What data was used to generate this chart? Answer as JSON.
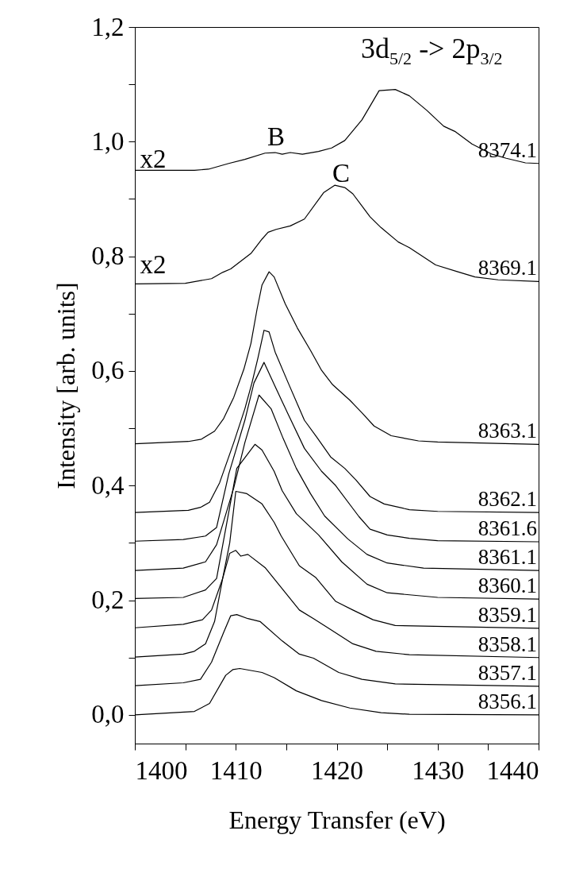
{
  "chart_data": {
    "type": "line",
    "xlabel": "Energy Transfer (eV)",
    "ylabel": "Intensity [arb. units]",
    "xlim": [
      1400,
      1440
    ],
    "ylim": [
      -0.05,
      1.2
    ],
    "xticks": [
      1400,
      {
        "value": 1405,
        "label": null
      },
      1410,
      {
        "value": 1415,
        "label": null
      },
      1420,
      {
        "value": 1425,
        "label": null
      },
      1430,
      {
        "value": 1435,
        "label": null
      },
      1440
    ],
    "yticks": [
      {
        "value": 0,
        "label": "0,0"
      },
      {
        "value": 0.1,
        "label": null
      },
      {
        "value": 0.2,
        "label": "0,2"
      },
      {
        "value": 0.3,
        "label": null
      },
      {
        "value": 0.4,
        "label": "0,4"
      },
      {
        "value": 0.5,
        "label": null
      },
      {
        "value": 0.6,
        "label": "0,6"
      },
      {
        "value": 0.7,
        "label": null
      },
      {
        "value": 0.8,
        "label": "0,8"
      },
      {
        "value": 0.9,
        "label": null
      },
      {
        "value": 1.0,
        "label": "1,0"
      },
      {
        "value": 1.1,
        "label": null
      },
      {
        "value": 1.2,
        "label": "1,2"
      }
    ],
    "annotations": [
      "3d$_{5/2}$ -> 2p$_{3/2}$",
      "x2",
      "x2",
      "B",
      "C"
    ],
    "series": [
      {
        "name": "8374.1",
        "color": "#000000",
        "x": [
          1400,
          1405.9,
          1407.3,
          1409.3,
          1410.9,
          1412.9,
          1413.9,
          1414.6,
          1415.4,
          1416.6,
          1418.2,
          1419.5,
          1420.8,
          1422.5,
          1423.3,
          1424.2,
          1425.8,
          1427.2,
          1428.9,
          1430.6,
          1431.7,
          1433.4,
          1435.4,
          1436.8,
          1438.7,
          1440
        ],
        "values": [
          0.95,
          0.95,
          0.952,
          0.962,
          0.969,
          0.98,
          0.981,
          0.978,
          0.981,
          0.978,
          0.983,
          0.989,
          1.002,
          1.038,
          1.062,
          1.089,
          1.091,
          1.08,
          1.055,
          1.027,
          1.018,
          0.996,
          0.978,
          0.971,
          0.963,
          0.962
        ]
      },
      {
        "name": "8369.1",
        "color": "#000000",
        "x": [
          1400,
          1405,
          1407.6,
          1408.7,
          1409.5,
          1411.5,
          1412.6,
          1413.2,
          1414.0,
          1415.4,
          1416.8,
          1418.7,
          1419.8,
          1420.8,
          1421.6,
          1423.3,
          1424.4,
          1426.1,
          1427.2,
          1429.8,
          1432,
          1433.7,
          1436,
          1440
        ],
        "values": [
          0.752,
          0.753,
          0.761,
          0.772,
          0.778,
          0.805,
          0.83,
          0.842,
          0.847,
          0.853,
          0.865,
          0.911,
          0.924,
          0.92,
          0.909,
          0.869,
          0.85,
          0.825,
          0.815,
          0.785,
          0.773,
          0.764,
          0.759,
          0.756
        ]
      },
      {
        "name": "8363.1",
        "color": "#000000",
        "x": [
          1400,
          1405.3,
          1406.6,
          1407.9,
          1408.8,
          1409.8,
          1410.8,
          1411.5,
          1412.1,
          1412.6,
          1413.3,
          1413.8,
          1414.9,
          1416.1,
          1417.4,
          1418.5,
          1419.6,
          1421.3,
          1422.5,
          1423.7,
          1425.4,
          1428.1,
          1430,
          1440
        ],
        "values": [
          0.473,
          0.477,
          0.481,
          0.495,
          0.517,
          0.554,
          0.603,
          0.648,
          0.707,
          0.75,
          0.773,
          0.764,
          0.717,
          0.675,
          0.636,
          0.601,
          0.576,
          0.549,
          0.527,
          0.504,
          0.487,
          0.478,
          0.476,
          0.472
        ]
      },
      {
        "name": "8362.1",
        "color": "#000000",
        "x": [
          1400,
          1405.3,
          1406.5,
          1407.4,
          1408.4,
          1409.8,
          1410.9,
          1411.6,
          1412.2,
          1412.8,
          1413.3,
          1413.9,
          1415.2,
          1416.8,
          1418,
          1419.4,
          1420.8,
          1421.9,
          1423.3,
          1424.7,
          1427.2,
          1430,
          1440
        ],
        "values": [
          0.353,
          0.357,
          0.362,
          0.371,
          0.405,
          0.475,
          0.534,
          0.579,
          0.623,
          0.671,
          0.668,
          0.633,
          0.579,
          0.514,
          0.485,
          0.45,
          0.43,
          0.41,
          0.381,
          0.368,
          0.358,
          0.355,
          0.353
        ]
      },
      {
        "name": "8361.6",
        "color": "#000000",
        "x": [
          1400,
          1404.8,
          1407,
          1408.1,
          1409.3,
          1410.9,
          1411.8,
          1412.8,
          1414,
          1415.2,
          1416.8,
          1418.5,
          1419.9,
          1422.2,
          1423.3,
          1425,
          1427.2,
          1430,
          1440
        ],
        "values": [
          0.303,
          0.306,
          0.312,
          0.327,
          0.42,
          0.514,
          0.579,
          0.615,
          0.569,
          0.524,
          0.465,
          0.425,
          0.4,
          0.346,
          0.324,
          0.314,
          0.308,
          0.304,
          0.302
        ]
      },
      {
        "name": "8361.1",
        "color": "#000000",
        "x": [
          1400,
          1404.8,
          1407,
          1408.1,
          1409.8,
          1410.9,
          1412.3,
          1413.5,
          1414.7,
          1416,
          1417.4,
          1418.8,
          1421.1,
          1423,
          1425,
          1428.6,
          1440
        ],
        "values": [
          0.252,
          0.256,
          0.267,
          0.297,
          0.396,
          0.475,
          0.558,
          0.534,
          0.482,
          0.43,
          0.386,
          0.347,
          0.307,
          0.28,
          0.265,
          0.256,
          0.252
        ]
      },
      {
        "name": "8360.1",
        "color": "#000000",
        "x": [
          1400,
          1404.8,
          1407,
          1408.1,
          1410.1,
          1411.9,
          1412.6,
          1413.8,
          1414.6,
          1416,
          1418.2,
          1420.5,
          1423,
          1425,
          1430,
          1440
        ],
        "values": [
          0.203,
          0.205,
          0.218,
          0.238,
          0.43,
          0.472,
          0.462,
          0.425,
          0.391,
          0.351,
          0.314,
          0.267,
          0.228,
          0.213,
          0.205,
          0.202
        ]
      },
      {
        "name": "8359.1",
        "color": "#000000",
        "x": [
          1400,
          1404.8,
          1406.7,
          1407.6,
          1408.7,
          1409.4,
          1410,
          1411.1,
          1412.6,
          1413.8,
          1414.5,
          1416.3,
          1417.9,
          1419.9,
          1421.6,
          1423.6,
          1425.8,
          1440
        ],
        "values": [
          0.152,
          0.158,
          0.166,
          0.183,
          0.238,
          0.3,
          0.39,
          0.386,
          0.368,
          0.336,
          0.312,
          0.26,
          0.24,
          0.198,
          0.183,
          0.166,
          0.156,
          0.151
        ]
      },
      {
        "name": "8358.1",
        "color": "#000000",
        "x": [
          1400,
          1404.8,
          1405.9,
          1407,
          1407.9,
          1408.7,
          1409.4,
          1410,
          1410.5,
          1411.2,
          1412.9,
          1414.6,
          1416.3,
          1417.7,
          1419.4,
          1421.6,
          1423.9,
          1427.2,
          1440
        ],
        "values": [
          0.101,
          0.106,
          0.111,
          0.124,
          0.163,
          0.238,
          0.282,
          0.287,
          0.277,
          0.28,
          0.257,
          0.22,
          0.183,
          0.168,
          0.149,
          0.124,
          0.111,
          0.105,
          0.1
        ]
      },
      {
        "name": "8357.1",
        "color": "#000000",
        "x": [
          1400,
          1404.8,
          1406.5,
          1407.6,
          1408.8,
          1409.5,
          1410.1,
          1411.2,
          1412.4,
          1414.6,
          1416.3,
          1417.7,
          1420.2,
          1422.5,
          1425.8,
          1440
        ],
        "values": [
          0.051,
          0.056,
          0.062,
          0.092,
          0.144,
          0.173,
          0.175,
          0.168,
          0.163,
          0.129,
          0.106,
          0.099,
          0.074,
          0.062,
          0.054,
          0.05
        ]
      },
      {
        "name": "8356.1",
        "color": "#000000",
        "x": [
          1400,
          1405.9,
          1407.4,
          1409,
          1409.7,
          1410.4,
          1412.6,
          1413.8,
          1416,
          1418.5,
          1421.3,
          1424.4,
          1427.2,
          1440
        ],
        "values": [
          0,
          0.006,
          0.02,
          0.069,
          0.079,
          0.081,
          0.074,
          0.065,
          0.042,
          0.025,
          0.012,
          0.004,
          0.001,
          0
        ]
      }
    ]
  }
}
